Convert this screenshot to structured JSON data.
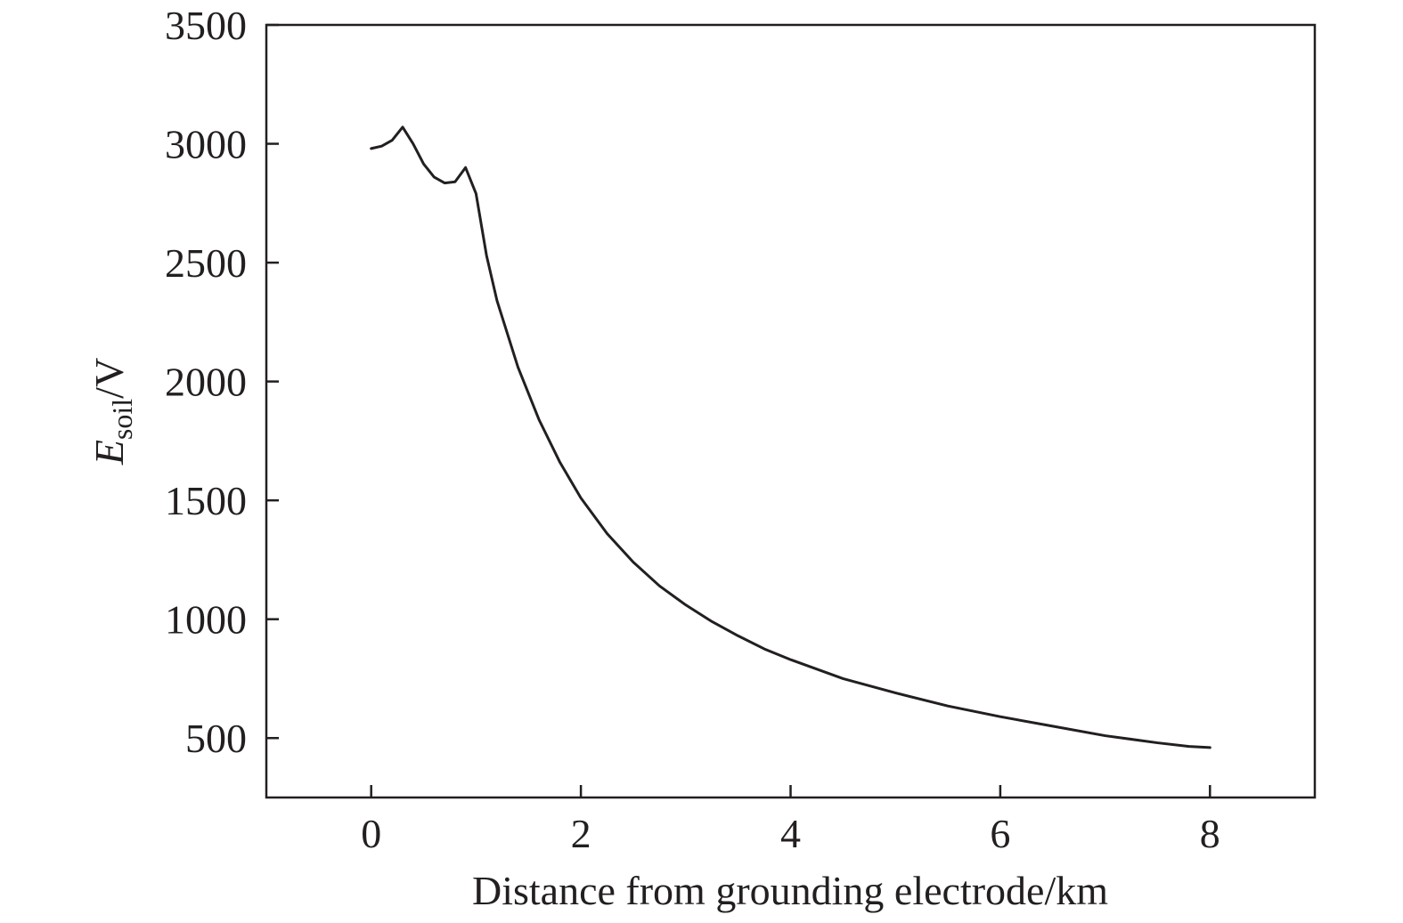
{
  "chart_data": {
    "type": "line",
    "title": "",
    "xlabel": "Distance from grounding electrode/km",
    "ylabel": {
      "main": "E",
      "sub": "soil",
      "unit": "/V"
    },
    "xlim": [
      -1,
      9
    ],
    "ylim": [
      250,
      3500
    ],
    "xticks": [
      0,
      2,
      4,
      6,
      8
    ],
    "yticks": [
      500,
      1000,
      1500,
      2000,
      2500,
      3000,
      3500
    ],
    "grid": false,
    "legend": "none",
    "line_color": "#231f20",
    "series": [
      {
        "x": [
          0,
          0.1,
          0.2,
          0.3,
          0.4,
          0.5,
          0.6,
          0.7,
          0.8,
          0.9,
          1.0,
          1.1,
          1.2,
          1.4,
          1.6,
          1.8,
          2.0,
          2.25,
          2.5,
          2.75,
          3.0,
          3.25,
          3.5,
          3.75,
          4.0,
          4.5,
          5.0,
          5.5,
          6.0,
          6.5,
          7.0,
          7.5,
          7.8,
          8.0
        ],
        "y": [
          2980,
          2990,
          3015,
          3070,
          3000,
          2915,
          2860,
          2835,
          2840,
          2900,
          2790,
          2530,
          2340,
          2060,
          1840,
          1660,
          1510,
          1360,
          1240,
          1140,
          1060,
          990,
          930,
          875,
          830,
          750,
          690,
          635,
          590,
          550,
          510,
          480,
          465,
          460
        ]
      }
    ]
  }
}
